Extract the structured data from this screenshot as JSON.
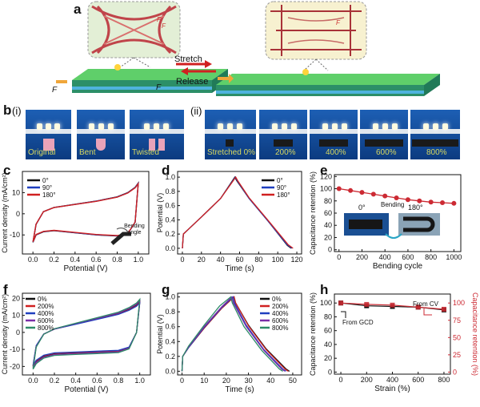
{
  "panel_letters": {
    "a": "a",
    "b": "b",
    "c": "c",
    "d": "d",
    "e": "e",
    "f": "f",
    "g": "g",
    "h": "h"
  },
  "panel_a": {
    "stretch": "Stretch",
    "release": "Release",
    "force_left": "F",
    "force_right": "F",
    "inset_f1": "F",
    "inset_f2": "F",
    "inset_f3": "F"
  },
  "panel_b": {
    "sub_i": "(i)",
    "sub_ii": "(ii)",
    "captions_i": [
      "Original",
      "Bent",
      "Twisted"
    ],
    "captions_ii": [
      "Stretched 0%",
      "200%",
      "400%",
      "600%",
      "800%"
    ]
  },
  "colors": {
    "black": "#111111",
    "blue": "#1f3fbf",
    "red": "#d02020",
    "purple": "#7a2ea8",
    "green": "#2e8b68",
    "caprad": "#cc2a33",
    "photo_bg": "#134f9f"
  },
  "chart_data": [
    {
      "id": "c",
      "type": "line",
      "xlabel": "Potential (V)",
      "ylabel": "Current density (mA/cm²)",
      "xlim": [
        -0.1,
        1.1
      ],
      "ylim": [
        -19,
        20
      ],
      "xticks": [
        "0.0",
        "0.2",
        "0.4",
        "0.6",
        "0.8",
        "1.0"
      ],
      "yticks": [
        "-10",
        "0",
        "10"
      ],
      "inset_label": "Bending angle",
      "series": [
        {
          "name": "0°",
          "color": "#111111"
        },
        {
          "name": "90°",
          "color": "#1f3fbf"
        },
        {
          "name": "180°",
          "color": "#d02020"
        }
      ],
      "cv": {
        "x": [
          0,
          0.03,
          0.1,
          0.2,
          0.4,
          0.6,
          0.8,
          0.9,
          0.97,
          1.0,
          1.0,
          0.97,
          0.9,
          0.8,
          0.6,
          0.4,
          0.2,
          0.1,
          0.03,
          0
        ],
        "y": [
          -13.5,
          -5,
          1,
          3,
          4.5,
          6,
          8,
          10,
          12.5,
          14.5,
          14.5,
          -4,
          -9.5,
          -10.5,
          -10,
          -9,
          -8,
          -8.5,
          -10,
          -13.5
        ]
      }
    },
    {
      "id": "d",
      "type": "line",
      "xlabel": "Time (s)",
      "ylabel": "Potential (V)",
      "xlim": [
        -5,
        125
      ],
      "ylim": [
        -0.08,
        1.08
      ],
      "xticks": [
        "0",
        "20",
        "40",
        "60",
        "80",
        "100",
        "120"
      ],
      "yticks": [
        "0.0",
        "0.2",
        "0.4",
        "0.6",
        "0.8",
        "1.0"
      ],
      "series": [
        {
          "name": "0°",
          "color": "#111111",
          "x": [
            0,
            1,
            5,
            20,
            40,
            55,
            57,
            70,
            90,
            110,
            114
          ],
          "y": [
            0,
            0.2,
            0.25,
            0.44,
            0.7,
            1.0,
            0.95,
            0.7,
            0.38,
            0.04,
            0
          ]
        },
        {
          "name": "90°",
          "color": "#1f3fbf",
          "x": [
            0,
            1,
            5,
            20,
            40,
            55.5,
            57.5,
            70,
            90,
            110,
            115
          ],
          "y": [
            0,
            0.2,
            0.25,
            0.44,
            0.7,
            1.0,
            0.95,
            0.7,
            0.38,
            0.05,
            0
          ]
        },
        {
          "name": "180°",
          "color": "#d02020",
          "x": [
            0,
            1,
            5,
            20,
            40,
            56,
            58,
            70,
            90,
            111,
            116
          ],
          "y": [
            0,
            0.2,
            0.25,
            0.44,
            0.7,
            1.0,
            0.95,
            0.71,
            0.39,
            0.05,
            0
          ]
        }
      ]
    },
    {
      "id": "e",
      "type": "line",
      "xlabel": "Bending cycle",
      "ylabel": "Capacitance retention (%)",
      "xlim": [
        -40,
        1060
      ],
      "ylim": [
        -3,
        123
      ],
      "xticks": [
        "0",
        "200",
        "400",
        "600",
        "800",
        "1000"
      ],
      "yticks": [
        "0",
        "20",
        "40",
        "60",
        "80",
        "100",
        "120"
      ],
      "inset": {
        "angle_start": "0°",
        "bending": "Bending",
        "angle_end": "180°"
      },
      "series": [
        {
          "name": "",
          "color": "#cc2a33",
          "x": [
            0,
            100,
            200,
            300,
            400,
            500,
            600,
            700,
            800,
            900,
            1000
          ],
          "y": [
            100,
            97,
            94,
            91,
            88,
            85,
            82,
            80,
            78,
            77,
            76
          ]
        }
      ]
    },
    {
      "id": "f",
      "type": "line",
      "xlabel": "Potential (V)",
      "ylabel": "Current density (mA/cm²)",
      "xlim": [
        -0.1,
        1.1
      ],
      "ylim": [
        -25,
        23
      ],
      "xticks": [
        "0.0",
        "0.2",
        "0.4",
        "0.6",
        "0.8",
        "1.0"
      ],
      "yticks": [
        "-20",
        "-10",
        "0",
        "10",
        "20"
      ],
      "series": [
        {
          "name": "0%",
          "color": "#111111"
        },
        {
          "name": "200%",
          "color": "#d02020"
        },
        {
          "name": "400%",
          "color": "#1f3fbf"
        },
        {
          "name": "600%",
          "color": "#7a2ea8"
        },
        {
          "name": "800%",
          "color": "#2e8b68"
        }
      ],
      "cv": {
        "x": [
          0,
          0.03,
          0.1,
          0.2,
          0.4,
          0.6,
          0.8,
          0.9,
          0.97,
          1.0,
          1.0,
          0.97,
          0.9,
          0.8,
          0.6,
          0.4,
          0.2,
          0.1,
          0.03,
          0
        ],
        "y": [
          -20,
          -8,
          -1,
          2,
          5,
          8,
          11,
          13.5,
          16,
          18,
          18,
          0,
          -9,
          -11,
          -11.5,
          -12,
          -12.5,
          -14,
          -17,
          -20
        ]
      },
      "scales": [
        1.0,
        0.98,
        0.96,
        1.04,
        1.08
      ]
    },
    {
      "id": "g",
      "type": "line",
      "xlabel": "Time (s)",
      "ylabel": "Potential (V)",
      "xlim": [
        -2,
        54
      ],
      "ylim": [
        -0.05,
        1.05
      ],
      "xticks": [
        "0",
        "10",
        "20",
        "30",
        "40",
        "50"
      ],
      "yticks": [
        "0.0",
        "0.2",
        "0.4",
        "0.6",
        "0.8",
        "1.0"
      ],
      "series": [
        {
          "name": "0%",
          "color": "#111111",
          "x": [
            0,
            0.3,
            3,
            10,
            18,
            23.5,
            24.2,
            30,
            38,
            47,
            48.5
          ],
          "y": [
            0,
            0.2,
            0.32,
            0.58,
            0.85,
            1.0,
            0.92,
            0.62,
            0.3,
            0.03,
            0
          ]
        },
        {
          "name": "200%",
          "color": "#d02020",
          "x": [
            0,
            0.3,
            3,
            10,
            18,
            23.5,
            24.2,
            30,
            38,
            46.5,
            48
          ],
          "y": [
            0,
            0.2,
            0.32,
            0.58,
            0.85,
            1.0,
            0.92,
            0.61,
            0.29,
            0.03,
            0
          ]
        },
        {
          "name": "400%",
          "color": "#1f3fbf",
          "x": [
            0,
            0.3,
            3,
            10,
            18,
            23,
            23.7,
            29,
            37,
            45.5,
            47
          ],
          "y": [
            0,
            0.2,
            0.32,
            0.59,
            0.86,
            1.0,
            0.92,
            0.62,
            0.29,
            0.03,
            0
          ]
        },
        {
          "name": "600%",
          "color": "#7a2ea8",
          "x": [
            0,
            0.3,
            3,
            10,
            18,
            22.5,
            23.2,
            29,
            37,
            45,
            46.5
          ],
          "y": [
            0,
            0.2,
            0.33,
            0.6,
            0.87,
            1.0,
            0.92,
            0.6,
            0.28,
            0.03,
            0
          ]
        },
        {
          "name": "800%",
          "color": "#2e8b68",
          "x": [
            0,
            0.3,
            3,
            10,
            17,
            22,
            22.7,
            28,
            36,
            44,
            45.5
          ],
          "y": [
            0,
            0.2,
            0.34,
            0.62,
            0.88,
            1.0,
            0.92,
            0.6,
            0.28,
            0.03,
            0
          ]
        }
      ]
    },
    {
      "id": "h",
      "type": "line",
      "xlabel": "Strain (%)",
      "ylabel": "Capacitance retention (%)",
      "ylabel_right": "Capacitance retention (%)",
      "xlim": [
        -50,
        850
      ],
      "ylim": [
        -3,
        113
      ],
      "xticks": [
        "0",
        "200",
        "400",
        "600",
        "800"
      ],
      "yticks": [
        "0",
        "20",
        "40",
        "60",
        "80",
        "100"
      ],
      "yticks_right": [
        "0",
        "25",
        "50",
        "75",
        "100"
      ],
      "annotations": {
        "from_cv": "From CV",
        "from_gcd": "From GCD"
      },
      "series": [
        {
          "name": "",
          "color": "#111111",
          "x": [
            0,
            200,
            400,
            600,
            800
          ],
          "y": [
            100,
            96,
            95,
            94,
            90
          ]
        },
        {
          "name": "",
          "color": "#cc2a33",
          "x": [
            0,
            200,
            400,
            600,
            800
          ],
          "y": [
            100,
            98,
            97,
            94,
            91
          ]
        }
      ]
    }
  ]
}
